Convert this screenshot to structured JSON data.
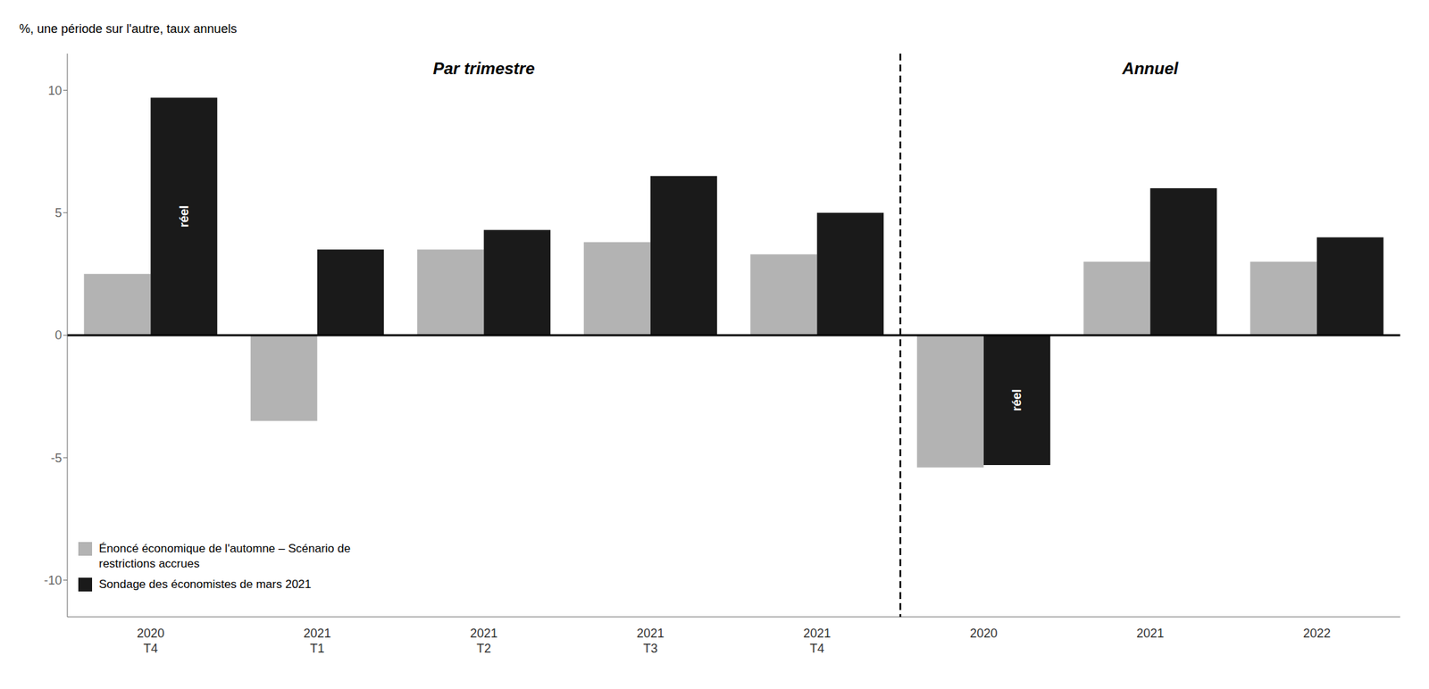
{
  "chart_data": {
    "type": "bar",
    "categories": [
      "2020\nT4",
      "2021\nT1",
      "2021\nT2",
      "2021\nT3",
      "2021\nT4",
      "2020",
      "2021",
      "2022"
    ],
    "series": [
      {
        "name": "Énoncé économique de l'automne – Scénario de\nrestrictions accrues",
        "color": "#b3b3b3",
        "values": [
          2.5,
          -3.5,
          3.5,
          3.8,
          3.3,
          -5.4,
          3.0,
          3.0
        ]
      },
      {
        "name": "Sondage des économistes de mars 2021",
        "color": "#1a1a1a",
        "values": [
          9.7,
          3.5,
          4.3,
          6.5,
          5.0,
          -5.3,
          6.0,
          4.0
        ]
      }
    ],
    "ylim": [
      -11.5,
      11.5
    ],
    "yticks": [
      -10,
      -5,
      0,
      5,
      10
    ],
    "y_label": "%, une période sur l'autre, taux annuels",
    "annotations": [
      {
        "text": "Par trimestre",
        "from": "2020\nT4",
        "to": "2021\nT4"
      },
      {
        "text": "Annuel",
        "from": "2020",
        "to": "2022"
      },
      {
        "text": "réel",
        "category": "2020\nT4",
        "series": "Sondage des économistes de mars 2021"
      },
      {
        "text": "réel",
        "category": "2020",
        "series": "Sondage des économistes de mars 2021"
      }
    ],
    "grid": false,
    "legend": "lower left"
  }
}
